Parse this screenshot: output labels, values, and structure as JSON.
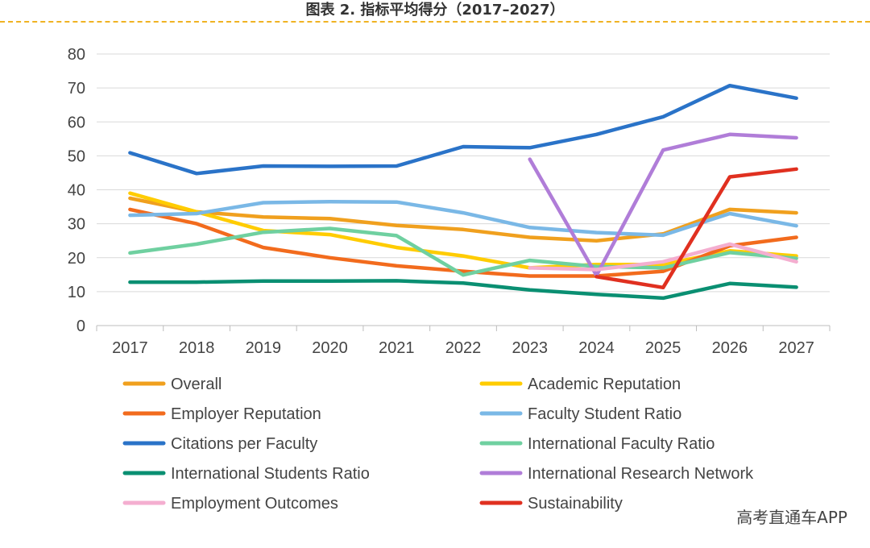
{
  "header": {
    "title": "图表 2. 指标平均得分（2017–2027）"
  },
  "watermark": "高考直通车APP",
  "chart_data": {
    "type": "line",
    "x": [
      "2017",
      "2018",
      "2019",
      "2020",
      "2021",
      "2022",
      "2023",
      "2024",
      "2025",
      "2026",
      "2027"
    ],
    "ylim": [
      0,
      80
    ],
    "yticks": [
      0,
      10,
      20,
      30,
      40,
      50,
      60,
      70,
      80
    ],
    "grid": true,
    "legend_position": "bottom",
    "series": [
      {
        "name": "Overall",
        "color": "#f0a01e",
        "values": [
          37.5,
          33.5,
          32,
          31.5,
          29.5,
          28.3,
          26,
          25,
          27,
          34.2,
          33.2
        ]
      },
      {
        "name": "Academic Reputation",
        "color": "#ffcc00",
        "values": [
          39,
          33.5,
          28,
          26.8,
          23,
          20.5,
          17,
          18,
          18,
          22,
          20.5
        ]
      },
      {
        "name": "Employer Reputation",
        "color": "#f26b1d",
        "values": [
          34.2,
          30,
          23,
          20,
          17.6,
          16,
          14.6,
          14.6,
          16,
          23.5,
          26
        ]
      },
      {
        "name": "Faculty Student Ratio",
        "color": "#7ab8e6",
        "values": [
          32.5,
          33,
          36.2,
          36.5,
          36.4,
          33.2,
          28.9,
          27.4,
          26.6,
          33,
          29.4
        ]
      },
      {
        "name": "Citations per Faculty",
        "color": "#2a73c8",
        "values": [
          50.9,
          44.8,
          47,
          46.9,
          47,
          52.7,
          52.4,
          56.3,
          61.5,
          70.7,
          67
        ]
      },
      {
        "name": "International Faculty Ratio",
        "color": "#6fd0a0",
        "values": [
          21.4,
          24,
          27.5,
          28.6,
          26.5,
          14.9,
          19.2,
          17.4,
          17,
          21.5,
          19.8
        ]
      },
      {
        "name": "International Students Ratio",
        "color": "#0a8f72",
        "values": [
          12.8,
          12.8,
          13.1,
          13.1,
          13.2,
          12.5,
          10.5,
          9.2,
          8.1,
          12.4,
          11.3
        ]
      },
      {
        "name": "International Research Network",
        "color": "#b07dd8",
        "values": [
          null,
          null,
          null,
          null,
          null,
          null,
          49,
          14.8,
          51.7,
          56.3,
          55.3
        ]
      },
      {
        "name": "Employment Outcomes",
        "color": "#f4aed0",
        "values": [
          null,
          null,
          null,
          null,
          null,
          null,
          17,
          16.5,
          18.8,
          24,
          18.8
        ]
      },
      {
        "name": "Sustainability",
        "color": "#e03020",
        "values": [
          null,
          null,
          null,
          null,
          null,
          null,
          null,
          14.4,
          11.2,
          43.8,
          46.1
        ]
      }
    ]
  }
}
